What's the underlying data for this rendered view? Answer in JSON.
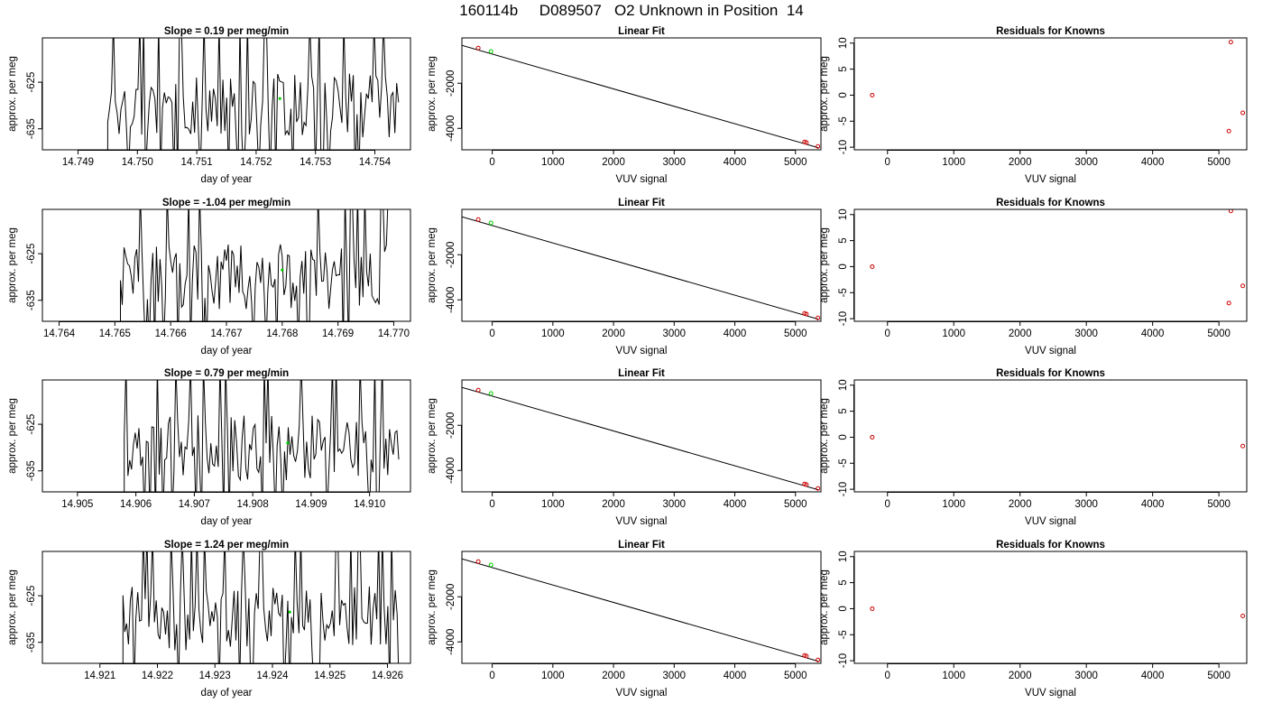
{
  "page_title": "160114b     D089507   O2 Unknown in Position  14",
  "colors": {
    "trace": "#000000",
    "known_point": "#cc0000",
    "unknown_point": "#00cc00",
    "frame": "#000000"
  },
  "chart_data": [
    {
      "type": "line",
      "title": "Slope =  0.19  per meg/min",
      "xlabel": "day of year",
      "ylabel": "approx. per meg",
      "xlim": [
        14.7484,
        14.7546
      ],
      "ylim": [
        -639.5,
        -615.5
      ],
      "xticks": [
        14.749,
        14.75,
        14.751,
        14.752,
        14.753,
        14.754
      ],
      "xtick_labels": [
        "14.749",
        "14.750",
        "14.751",
        "14.752",
        "14.753",
        "14.754"
      ],
      "yticks": [
        -625,
        -635
      ],
      "ytick_labels": [
        "-625",
        "-635"
      ],
      "trace_x_range": [
        14.7495,
        14.7544
      ],
      "trace_points": 155,
      "unknown_point": {
        "x": 14.7524,
        "y": -628.5
      },
      "series": [
        {
          "name": "trace"
        }
      ]
    },
    {
      "type": "scatter",
      "title": "Linear Fit",
      "xlabel": "VUV signal",
      "ylabel": "approx. per meg",
      "xlim": [
        -500,
        5420
      ],
      "ylim": [
        -4950,
        10
      ],
      "xticks": [
        0,
        1000,
        2000,
        3000,
        4000,
        5000
      ],
      "xtick_labels": [
        "0",
        "1000",
        "2000",
        "3000",
        "4000",
        "5000"
      ],
      "yticks": [
        -2000,
        -4000
      ],
      "ytick_labels": [
        "-2000",
        "-4000"
      ],
      "fit_line": {
        "x": [
          -500,
          5380
        ],
        "y": [
          -320,
          -4860
        ]
      },
      "known_points": [
        {
          "x": -230,
          "y": -440
        },
        {
          "x": 5150,
          "y": -4600
        },
        {
          "x": 5180,
          "y": -4630
        },
        {
          "x": 5370,
          "y": -4800
        }
      ],
      "unknown_points": [
        {
          "x": -20,
          "y": -590
        }
      ]
    },
    {
      "type": "scatter",
      "title": "Residuals for Knowns",
      "xlabel": "VUV signal",
      "ylabel": "approx. per meg",
      "xlim": [
        -500,
        5420
      ],
      "ylim": [
        -10.5,
        11
      ],
      "xticks": [
        0,
        1000,
        2000,
        3000,
        4000,
        5000
      ],
      "xtick_labels": [
        "0",
        "1000",
        "2000",
        "3000",
        "4000",
        "5000"
      ],
      "yticks": [
        10,
        5,
        0,
        -5,
        -10
      ],
      "ytick_labels": [
        "10",
        "5",
        "0",
        "-5",
        "-10"
      ],
      "known_points": [
        {
          "x": -230,
          "y": 0
        },
        {
          "x": 5180,
          "y": 10.2
        },
        {
          "x": 5150,
          "y": -6.9
        },
        {
          "x": 5360,
          "y": -3.4
        }
      ]
    },
    {
      "type": "line",
      "title": "Slope =  -1.04  per meg/min",
      "xlabel": "day of year",
      "ylabel": "approx. per meg",
      "xlim": [
        14.7637,
        14.7703
      ],
      "ylim": [
        -639.5,
        -615.5
      ],
      "xticks": [
        14.764,
        14.765,
        14.766,
        14.767,
        14.768,
        14.769,
        14.77
      ],
      "xtick_labels": [
        "14.764",
        "14.765",
        "14.766",
        "14.767",
        "14.768",
        "14.769",
        "14.770"
      ],
      "yticks": [
        -625,
        -635
      ],
      "ytick_labels": [
        "-625",
        "-635"
      ],
      "trace_x_range": [
        14.7651,
        14.7699
      ],
      "trace_points": 150,
      "unknown_point": {
        "x": 14.768,
        "y": -628.5
      },
      "series": [
        {
          "name": "trace"
        }
      ]
    },
    {
      "type": "scatter",
      "title": "Linear Fit",
      "xlabel": "VUV signal",
      "ylabel": "approx. per meg",
      "xlim": [
        -500,
        5420
      ],
      "ylim": [
        -4950,
        10
      ],
      "xticks": [
        0,
        1000,
        2000,
        3000,
        4000,
        5000
      ],
      "xtick_labels": [
        "0",
        "1000",
        "2000",
        "3000",
        "4000",
        "5000"
      ],
      "yticks": [
        -2000,
        -4000
      ],
      "ytick_labels": [
        "-2000",
        "-4000"
      ],
      "fit_line": {
        "x": [
          -500,
          5380
        ],
        "y": [
          -320,
          -4860
        ]
      },
      "known_points": [
        {
          "x": -230,
          "y": -440
        },
        {
          "x": 5150,
          "y": -4600
        },
        {
          "x": 5180,
          "y": -4630
        },
        {
          "x": 5370,
          "y": -4800
        }
      ],
      "unknown_points": [
        {
          "x": -20,
          "y": -590
        }
      ]
    },
    {
      "type": "scatter",
      "title": "Residuals for Knowns",
      "xlabel": "VUV signal",
      "ylabel": "approx. per meg",
      "xlim": [
        -500,
        5420
      ],
      "ylim": [
        -10.5,
        11
      ],
      "xticks": [
        0,
        1000,
        2000,
        3000,
        4000,
        5000
      ],
      "xtick_labels": [
        "0",
        "1000",
        "2000",
        "3000",
        "4000",
        "5000"
      ],
      "yticks": [
        10,
        5,
        0,
        -5,
        -10
      ],
      "ytick_labels": [
        "10",
        "5",
        "0",
        "-5",
        "-10"
      ],
      "known_points": [
        {
          "x": -230,
          "y": 0
        },
        {
          "x": 5180,
          "y": 10.7
        },
        {
          "x": 5150,
          "y": -7.0
        },
        {
          "x": 5360,
          "y": -3.7
        }
      ]
    },
    {
      "type": "line",
      "title": "Slope =  0.79  per meg/min",
      "xlabel": "day of year",
      "ylabel": "approx. per meg",
      "xlim": [
        14.9044,
        14.9107
      ],
      "ylim": [
        -639.5,
        -615.5
      ],
      "xticks": [
        14.905,
        14.906,
        14.907,
        14.908,
        14.909,
        14.91
      ],
      "xtick_labels": [
        "14.905",
        "14.906",
        "14.907",
        "14.908",
        "14.909",
        "14.910"
      ],
      "yticks": [
        -625,
        -635
      ],
      "ytick_labels": [
        "-625",
        "-635"
      ],
      "trace_x_range": [
        14.9058,
        14.9105
      ],
      "trace_points": 150,
      "unknown_point": {
        "x": 14.9086,
        "y": -629.0
      },
      "series": [
        {
          "name": "trace"
        }
      ]
    },
    {
      "type": "scatter",
      "title": "Linear Fit",
      "xlabel": "VUV signal",
      "ylabel": "approx. per meg",
      "xlim": [
        -500,
        5420
      ],
      "ylim": [
        -4950,
        10
      ],
      "xticks": [
        0,
        1000,
        2000,
        3000,
        4000,
        5000
      ],
      "xtick_labels": [
        "0",
        "1000",
        "2000",
        "3000",
        "4000",
        "5000"
      ],
      "yticks": [
        -2000,
        -4000
      ],
      "ytick_labels": [
        "-2000",
        "-4000"
      ],
      "fit_line": {
        "x": [
          -500,
          5380
        ],
        "y": [
          -320,
          -4860
        ]
      },
      "known_points": [
        {
          "x": -230,
          "y": -440
        },
        {
          "x": 5150,
          "y": -4600
        },
        {
          "x": 5180,
          "y": -4630
        },
        {
          "x": 5370,
          "y": -4800
        }
      ],
      "unknown_points": [
        {
          "x": -20,
          "y": -590
        }
      ]
    },
    {
      "type": "scatter",
      "title": "Residuals for Knowns",
      "xlabel": "VUV signal",
      "ylabel": "approx. per meg",
      "xlim": [
        -500,
        5420
      ],
      "ylim": [
        -10.5,
        11
      ],
      "xticks": [
        0,
        1000,
        2000,
        3000,
        4000,
        5000
      ],
      "xtick_labels": [
        "0",
        "1000",
        "2000",
        "3000",
        "4000",
        "5000"
      ],
      "yticks": [
        10,
        5,
        0,
        -5,
        -10
      ],
      "ytick_labels": [
        "10",
        "5",
        "0",
        "-5",
        "-10"
      ],
      "known_points": [
        {
          "x": -230,
          "y": 0
        },
        {
          "x": 5360,
          "y": -1.7
        }
      ]
    },
    {
      "type": "line",
      "title": "Slope =  1.24  per meg/min",
      "xlabel": "day of year",
      "ylabel": "approx. per meg",
      "xlim": [
        14.92,
        14.9264
      ],
      "ylim": [
        -639.5,
        -615.5
      ],
      "xticks": [
        14.921,
        14.922,
        14.923,
        14.924,
        14.925,
        14.926
      ],
      "xtick_labels": [
        "14.921",
        "14.922",
        "14.923",
        "14.924",
        "14.925",
        "14.926"
      ],
      "yticks": [
        -625,
        -635
      ],
      "ytick_labels": [
        "-625",
        "-635"
      ],
      "trace_x_range": [
        14.9214,
        14.9262
      ],
      "trace_points": 150,
      "unknown_point": {
        "x": 14.9243,
        "y": -628.5
      },
      "series": [
        {
          "name": "trace"
        }
      ]
    },
    {
      "type": "scatter",
      "title": "Linear Fit",
      "xlabel": "VUV signal",
      "ylabel": "approx. per meg",
      "xlim": [
        -500,
        5420
      ],
      "ylim": [
        -4950,
        10
      ],
      "xticks": [
        0,
        1000,
        2000,
        3000,
        4000,
        5000
      ],
      "xtick_labels": [
        "0",
        "1000",
        "2000",
        "3000",
        "4000",
        "5000"
      ],
      "yticks": [
        -2000,
        -4000
      ],
      "ytick_labels": [
        "-2000",
        "-4000"
      ],
      "fit_line": {
        "x": [
          -500,
          5380
        ],
        "y": [
          -320,
          -4860
        ]
      },
      "known_points": [
        {
          "x": -230,
          "y": -440
        },
        {
          "x": 5150,
          "y": -4600
        },
        {
          "x": 5180,
          "y": -4630
        },
        {
          "x": 5370,
          "y": -4800
        }
      ],
      "unknown_points": [
        {
          "x": -20,
          "y": -590
        }
      ]
    },
    {
      "type": "scatter",
      "title": "Residuals for Knowns",
      "xlabel": "VUV signal",
      "ylabel": "approx. per meg",
      "xlim": [
        -500,
        5420
      ],
      "ylim": [
        -10.5,
        11
      ],
      "xticks": [
        0,
        1000,
        2000,
        3000,
        4000,
        5000
      ],
      "xtick_labels": [
        "0",
        "1000",
        "2000",
        "3000",
        "4000",
        "5000"
      ],
      "yticks": [
        10,
        5,
        0,
        -5,
        -10
      ],
      "ytick_labels": [
        "10",
        "5",
        "0",
        "-5",
        "-10"
      ],
      "known_points": [
        {
          "x": -230,
          "y": 0
        },
        {
          "x": 5360,
          "y": -1.4
        }
      ]
    }
  ]
}
